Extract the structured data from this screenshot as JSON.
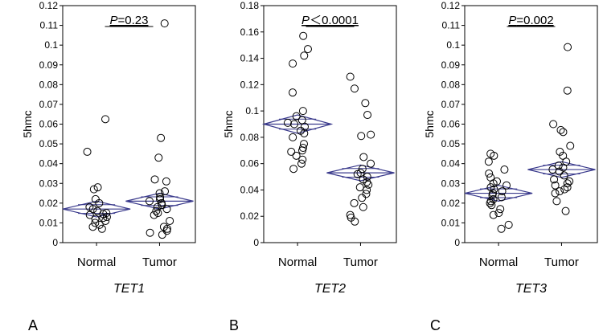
{
  "chart_data": [
    {
      "type": "scatter",
      "panel_label": "A",
      "gene": "TET1",
      "ylabel": "5hmc",
      "ylim": [
        0,
        0.12
      ],
      "yticks": [
        "0",
        "0.01",
        "0.02",
        "0.03",
        "0.04",
        "0.05",
        "0.06",
        "0.07",
        "0.08",
        "0.09",
        "0.1",
        "0.11",
        "0.12"
      ],
      "categories": [
        "Normal",
        "Tumor"
      ],
      "p_prefix": "P",
      "p_value": "=0.23",
      "accent_color": "#3a3a8c",
      "series": [
        {
          "name": "Normal",
          "values": [
            0.0625,
            0.046,
            0.028,
            0.027,
            0.022,
            0.02,
            0.018,
            0.017,
            0.016,
            0.015,
            0.0145,
            0.014,
            0.013,
            0.0125,
            0.012,
            0.011,
            0.01,
            0.009,
            0.008,
            0.007
          ],
          "mean": 0.017,
          "ci": [
            0.013,
            0.021
          ]
        },
        {
          "name": "Tumor",
          "values": [
            0.111,
            0.053,
            0.043,
            0.032,
            0.031,
            0.026,
            0.025,
            0.023,
            0.022,
            0.021,
            0.02,
            0.019,
            0.018,
            0.017,
            0.016,
            0.015,
            0.014,
            0.011,
            0.008,
            0.007,
            0.006,
            0.005,
            0.004
          ],
          "mean": 0.021,
          "ci": [
            0.017,
            0.025
          ]
        }
      ]
    },
    {
      "type": "scatter",
      "panel_label": "B",
      "gene": "TET2",
      "ylabel": "5hmc",
      "ylim": [
        0,
        0.18
      ],
      "yticks": [
        "0",
        "0.02",
        "0.04",
        "0.06",
        "0.08",
        "0.1",
        "0.12",
        "0.14",
        "0.16",
        "0.18"
      ],
      "categories": [
        "Normal",
        "Tumor"
      ],
      "p_prefix": "P",
      "p_value": "＜0.0001",
      "accent_color": "#3a3a8c",
      "series": [
        {
          "name": "Normal",
          "values": [
            0.157,
            0.147,
            0.142,
            0.136,
            0.114,
            0.1,
            0.096,
            0.093,
            0.091,
            0.09,
            0.088,
            0.085,
            0.083,
            0.08,
            0.075,
            0.072,
            0.07,
            0.069,
            0.066,
            0.063,
            0.06,
            0.056
          ],
          "mean": 0.09,
          "ci": [
            0.083,
            0.097
          ]
        },
        {
          "name": "Tumor",
          "values": [
            0.126,
            0.117,
            0.106,
            0.097,
            0.082,
            0.081,
            0.065,
            0.06,
            0.056,
            0.053,
            0.052,
            0.05,
            0.048,
            0.046,
            0.044,
            0.042,
            0.04,
            0.037,
            0.034,
            0.03,
            0.027,
            0.021,
            0.019,
            0.016
          ],
          "mean": 0.053,
          "ci": [
            0.047,
            0.059
          ]
        }
      ]
    },
    {
      "type": "scatter",
      "panel_label": "C",
      "gene": "TET3",
      "ylabel": "5hmc",
      "ylim": [
        0,
        0.12
      ],
      "yticks": [
        "0",
        "0.01",
        "0.02",
        "0.03",
        "0.04",
        "0.05",
        "0.06",
        "0.07",
        "0.08",
        "0.09",
        "0.1",
        "0.11",
        "0.12"
      ],
      "categories": [
        "Normal",
        "Tumor"
      ],
      "p_prefix": "P",
      "p_value": "=0.002",
      "accent_color": "#3a3a8c",
      "series": [
        {
          "name": "Normal",
          "values": [
            0.045,
            0.044,
            0.041,
            0.037,
            0.035,
            0.033,
            0.031,
            0.03,
            0.029,
            0.028,
            0.027,
            0.026,
            0.025,
            0.024,
            0.023,
            0.022,
            0.021,
            0.02,
            0.019,
            0.017,
            0.015,
            0.014,
            0.009,
            0.007
          ],
          "mean": 0.025,
          "ci": [
            0.021,
            0.029
          ]
        },
        {
          "name": "Tumor",
          "values": [
            0.099,
            0.077,
            0.06,
            0.057,
            0.056,
            0.049,
            0.046,
            0.044,
            0.041,
            0.039,
            0.038,
            0.037,
            0.036,
            0.034,
            0.032,
            0.031,
            0.03,
            0.029,
            0.028,
            0.027,
            0.026,
            0.025,
            0.021,
            0.016
          ],
          "mean": 0.037,
          "ci": [
            0.033,
            0.041
          ]
        }
      ]
    }
  ]
}
